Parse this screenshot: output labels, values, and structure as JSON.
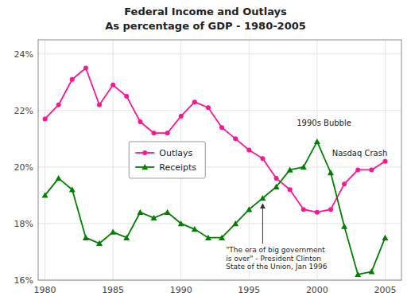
{
  "chart_data": {
    "type": "line",
    "title": "Federal Income and Outlays",
    "subtitle": "As percentage of GDP - 1980-2005",
    "x": [
      1980,
      1981,
      1982,
      1983,
      1984,
      1985,
      1986,
      1987,
      1988,
      1989,
      1990,
      1991,
      1992,
      1993,
      1994,
      1995,
      1996,
      1997,
      1998,
      1999,
      2000,
      2001,
      2002,
      2003,
      2004,
      2005
    ],
    "series": [
      {
        "name": "Outlays",
        "color": "#ff1493",
        "marker": "circle",
        "values": [
          21.7,
          22.2,
          23.1,
          23.5,
          22.2,
          22.9,
          22.5,
          21.6,
          21.2,
          21.2,
          21.8,
          22.3,
          22.1,
          21.4,
          21.0,
          20.6,
          20.3,
          19.6,
          19.2,
          18.5,
          18.4,
          18.5,
          19.4,
          19.9,
          19.9,
          20.2
        ]
      },
      {
        "name": "Receipts",
        "color": "#008000",
        "marker": "triangle",
        "values": [
          19.0,
          19.6,
          19.2,
          17.5,
          17.3,
          17.7,
          17.5,
          18.4,
          18.2,
          18.4,
          18.0,
          17.8,
          17.5,
          17.5,
          18.0,
          18.5,
          18.9,
          19.3,
          19.9,
          20.0,
          20.9,
          19.8,
          17.9,
          16.2,
          16.3,
          17.5
        ]
      }
    ],
    "xlim": [
      1979.5,
      2006.2
    ],
    "xticks": [
      1980,
      1985,
      1990,
      1995,
      2000,
      2005
    ],
    "ylim": [
      16.0,
      24.5
    ],
    "yticks": [
      {
        "value": 16,
        "label": "16%"
      },
      {
        "value": 18,
        "label": "18%"
      },
      {
        "value": 20,
        "label": "20%"
      },
      {
        "value": 22,
        "label": "22%"
      },
      {
        "value": 24,
        "label": "24%"
      }
    ],
    "grid": true,
    "legend": "center left",
    "annotations": [
      {
        "text": "1990s Bubble",
        "x": 2000,
        "y": 20.9
      },
      {
        "text": "Nasdaq Crash",
        "x": 2001,
        "y": 19.8
      },
      {
        "text": "\"The era of big government\nis over\" - President Clinton\nState of the Union, Jan 1996",
        "x": 1996,
        "y": 18.9
      }
    ]
  }
}
